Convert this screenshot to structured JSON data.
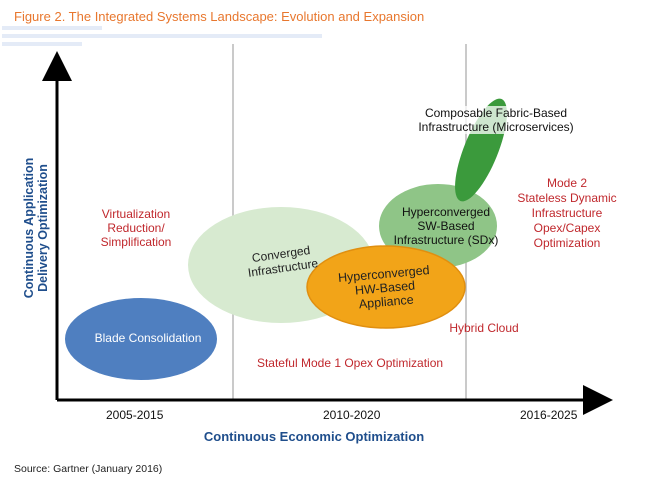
{
  "figure": {
    "title": "Figure 2. The Integrated Systems Landscape: Evolution and Expansion",
    "source": "Source: Gartner (January 2016)"
  },
  "axes": {
    "y_label_lines": [
      "Continuous Application",
      "Delivery Optimization"
    ],
    "x_label": "Continuous Economic Optimization",
    "x_ticks": [
      "2005-2015",
      "2010-2020",
      "2016-2025"
    ]
  },
  "annotations": {
    "virtualization": [
      "Virtualization",
      "Reduction/",
      "Simplification"
    ],
    "mode2": [
      "Mode 2",
      "Stateless Dynamic",
      "Infrastructure",
      "Opex/Capex",
      "Optimization"
    ],
    "hybrid_cloud": "Hybrid Cloud",
    "mode1": "Stateful Mode 1 Opex Optimization"
  },
  "blobs": {
    "blade": {
      "label": [
        "Blade Consolidation"
      ],
      "color": "#4f7fc0"
    },
    "converged": {
      "label": [
        "Converged",
        "Infrastructure"
      ],
      "color": "#d7ead0"
    },
    "hyper_hw": {
      "label": [
        "Hyperconverged",
        "HW-Based",
        "Appliance"
      ],
      "color": "#f2a418"
    },
    "hyper_sw": {
      "label": [
        "Hyperconverged",
        "SW-Based",
        "Infrastructure (SDx)"
      ],
      "color": "#8fc587"
    },
    "composable": {
      "label": [
        "Composable Fabric-Based",
        "Infrastructure (Microservices)"
      ],
      "color": "#3b9a3c"
    }
  },
  "colors": {
    "title": "#e8772e",
    "axis_label": "#1f4e8c",
    "annotation": "#c0282d",
    "divider": "#b8b8b8"
  }
}
